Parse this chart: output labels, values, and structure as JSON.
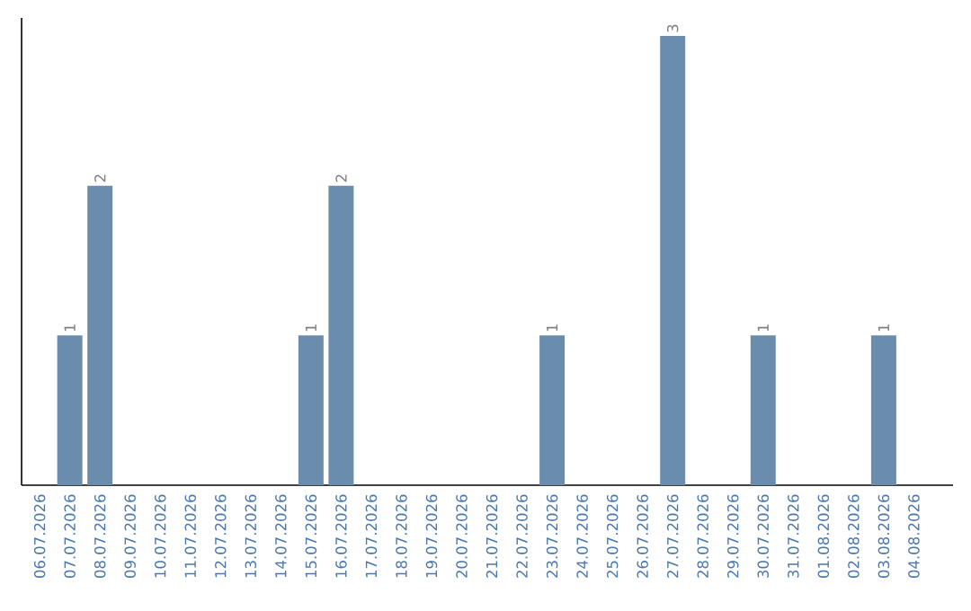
{
  "chart_data": {
    "type": "bar",
    "categories": [
      "06.07.2026",
      "07.07.2026",
      "08.07.2026",
      "09.07.2026",
      "10.07.2026",
      "11.07.2026",
      "12.07.2026",
      "13.07.2026",
      "14.07.2026",
      "15.07.2026",
      "16.07.2026",
      "17.07.2026",
      "18.07.2026",
      "19.07.2026",
      "20.07.2026",
      "21.07.2026",
      "22.07.2026",
      "23.07.2026",
      "24.07.2026",
      "25.07.2026",
      "26.07.2026",
      "27.07.2026",
      "28.07.2026",
      "29.07.2026",
      "30.07.2026",
      "31.07.2026",
      "01.08.2026",
      "02.08.2026",
      "03.08.2026",
      "04.08.2026"
    ],
    "values": [
      0,
      1,
      2,
      0,
      0,
      0,
      0,
      0,
      0,
      1,
      2,
      0,
      0,
      0,
      0,
      0,
      0,
      1,
      0,
      0,
      0,
      3,
      0,
      0,
      1,
      0,
      0,
      0,
      1,
      0
    ],
    "value_labels": [
      null,
      "1",
      "2",
      null,
      null,
      null,
      null,
      null,
      null,
      "1",
      "2",
      null,
      null,
      null,
      null,
      null,
      null,
      "1",
      null,
      null,
      null,
      "3",
      null,
      null,
      "1",
      null,
      null,
      null,
      "1",
      null
    ],
    "color": "#6a8cad",
    "tick_labels": "x"
  }
}
